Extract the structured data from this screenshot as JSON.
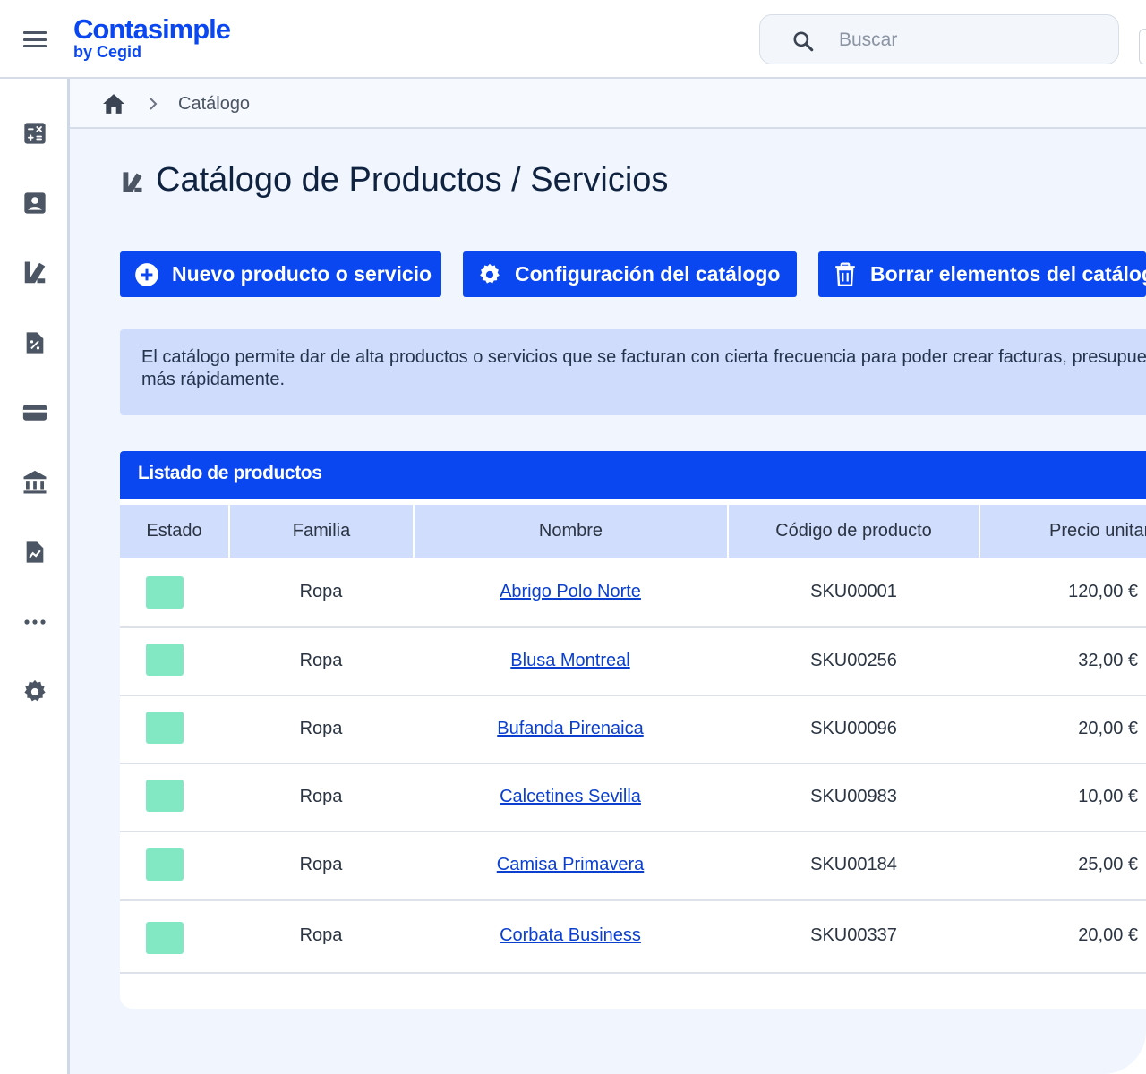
{
  "app": {
    "logo_main": "Contasimple",
    "logo_sub": "by Cegid",
    "search_placeholder": "Buscar"
  },
  "breadcrumb": {
    "current": "Catálogo"
  },
  "page": {
    "title": "Catálogo de Productos / Servicios"
  },
  "sidebar": {
    "items": [
      {
        "icon": "calculator-icon"
      },
      {
        "icon": "contacts-icon"
      },
      {
        "icon": "catalog-icon"
      },
      {
        "icon": "tax-document-icon"
      },
      {
        "icon": "wallet-icon"
      },
      {
        "icon": "bank-icon"
      },
      {
        "icon": "reports-icon"
      },
      {
        "icon": "more-icon"
      },
      {
        "icon": "settings-icon"
      }
    ]
  },
  "actions": {
    "new_label": "Nuevo producto o servicio",
    "config_label": "Configuración del catálogo",
    "delete_label": "Borrar elementos del catálogo"
  },
  "info": {
    "line1": "El catálogo permite dar de alta productos o servicios que se facturan con cierta frecuencia para poder crear facturas, presupuestos",
    "line2": "más rápidamente."
  },
  "table": {
    "title": "Listado de productos",
    "headers": {
      "estado": "Estado",
      "familia": "Familia",
      "nombre": "Nombre",
      "codigo": "Código de producto",
      "precio": "Precio unitario"
    },
    "rows": [
      {
        "familia": "Ropa",
        "nombre": "Abrigo Polo Norte",
        "codigo": "SKU00001",
        "precio": "120,00 €"
      },
      {
        "familia": "Ropa",
        "nombre": "Blusa Montreal",
        "codigo": "SKU00256",
        "precio": "32,00 €"
      },
      {
        "familia": "Ropa",
        "nombre": "Bufanda Pirenaica",
        "codigo": "SKU00096",
        "precio": "20,00 €"
      },
      {
        "familia": "Ropa",
        "nombre": "Calcetines Sevilla",
        "codigo": "SKU00983",
        "precio": "10,00 €"
      },
      {
        "familia": "Ropa",
        "nombre": "Camisa Primavera",
        "codigo": "SKU00184",
        "precio": "25,00 €"
      },
      {
        "familia": "Ropa",
        "nombre": "Corbata Business",
        "codigo": "SKU00337",
        "precio": "20,00 €"
      }
    ]
  },
  "colors": {
    "brand": "#0a47f0",
    "status_active": "#82e8c4",
    "info_bg": "#cfdcfc",
    "header_bg": "#d1ddfd"
  }
}
